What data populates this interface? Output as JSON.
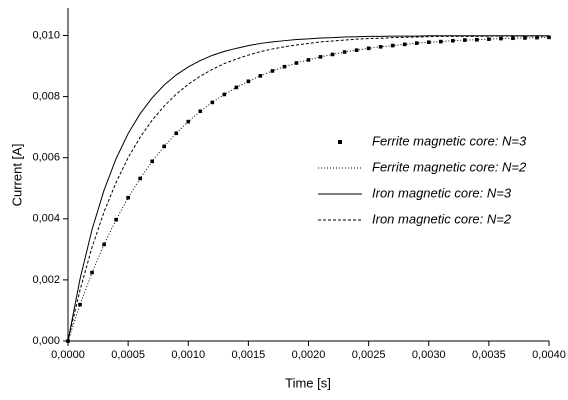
{
  "chart_data": {
    "type": "line",
    "xlabel": "Time [s]",
    "ylabel": "Current [A]",
    "x": [
      0,
      0.0001,
      0.0002,
      0.0003,
      0.0004,
      0.0005,
      0.0006,
      0.0007,
      0.0008,
      0.0009,
      0.001,
      0.0011,
      0.0012,
      0.0013,
      0.0014,
      0.0015,
      0.0016,
      0.0017,
      0.0018,
      0.0019,
      0.002,
      0.0021,
      0.0022,
      0.0023,
      0.0024,
      0.0025,
      0.0026,
      0.0027,
      0.0028,
      0.0029,
      0.003,
      0.0031,
      0.0032,
      0.0033,
      0.0034,
      0.0035,
      0.0036,
      0.0037,
      0.0038,
      0.0039,
      0.004
    ],
    "series": [
      {
        "name": "Ferrite magnetic core: N=3",
        "color": "#000000",
        "style": "markers",
        "values": [
          0,
          0.00119,
          0.00224,
          0.00316,
          0.00397,
          0.00469,
          0.00532,
          0.00588,
          0.00637,
          0.0068,
          0.00718,
          0.00752,
          0.00781,
          0.00807,
          0.0083,
          0.0085,
          0.00868,
          0.00884,
          0.00898,
          0.0091,
          0.0092,
          0.0093,
          0.00938,
          0.00946,
          0.00952,
          0.00958,
          0.00963,
          0.00967,
          0.00971,
          0.00975,
          0.00978,
          0.0098,
          0.00983,
          0.00985,
          0.00986,
          0.00988,
          0.0099,
          0.00991,
          0.00992,
          0.00993,
          0.00994
        ]
      },
      {
        "name": "Ferrite magnetic core: N=2",
        "color": "#000000",
        "style": "dotted",
        "values": [
          0,
          0.00119,
          0.00224,
          0.00316,
          0.00397,
          0.00469,
          0.00532,
          0.00588,
          0.00637,
          0.0068,
          0.00718,
          0.00752,
          0.00781,
          0.00807,
          0.0083,
          0.0085,
          0.00868,
          0.00884,
          0.00898,
          0.0091,
          0.0092,
          0.0093,
          0.00938,
          0.00946,
          0.00952,
          0.00958,
          0.00963,
          0.00967,
          0.00971,
          0.00975,
          0.00978,
          0.0098,
          0.00983,
          0.00985,
          0.00986,
          0.00988,
          0.0099,
          0.00991,
          0.00992,
          0.00993,
          0.00994
        ]
      },
      {
        "name": "Iron magnetic core: N=3",
        "color": "#000000",
        "style": "solid",
        "values": [
          0,
          0.00203,
          0.00365,
          0.00494,
          0.00597,
          0.00679,
          0.00744,
          0.00796,
          0.00838,
          0.00871,
          0.00897,
          0.00918,
          0.00935,
          0.00948,
          0.00958,
          0.00967,
          0.00974,
          0.00979,
          0.00983,
          0.00987,
          0.00989,
          0.00992,
          0.00993,
          0.00995,
          0.00996,
          0.00997,
          0.00997,
          0.00998,
          0.00998,
          0.00998,
          0.00999,
          0.00999,
          0.00999,
          0.00999,
          0.00999,
          0.00999,
          0.00999,
          0.00999,
          0.00999,
          0.00999,
          0.00999
        ]
      },
      {
        "name": "Iron magnetic core: N=2",
        "color": "#000000",
        "style": "dashed",
        "values": [
          0,
          0.00167,
          0.00307,
          0.00423,
          0.00519,
          0.006,
          0.00667,
          0.00723,
          0.00769,
          0.00808,
          0.0084,
          0.00867,
          0.00889,
          0.00908,
          0.00923,
          0.00936,
          0.00947,
          0.00956,
          0.00963,
          0.00969,
          0.00974,
          0.00979,
          0.00982,
          0.00985,
          0.00988,
          0.0099,
          0.00991,
          0.00993,
          0.00994,
          0.00995,
          0.00996,
          0.00997,
          0.00997,
          0.00997,
          0.00997,
          0.00998,
          0.00998,
          0.00998,
          0.00998,
          0.00998,
          0.00998
        ]
      }
    ],
    "xlim": [
      0,
      0.004
    ],
    "xticks": [
      {
        "value": 0,
        "label": "0,0000"
      },
      {
        "value": 0.0005,
        "label": "0,0005"
      },
      {
        "value": 0.001,
        "label": "0,0010"
      },
      {
        "value": 0.0015,
        "label": "0,0015"
      },
      {
        "value": 0.002,
        "label": "0,0020"
      },
      {
        "value": 0.0025,
        "label": "0,0025"
      },
      {
        "value": 0.003,
        "label": "0,0030"
      },
      {
        "value": 0.0035,
        "label": "0,0035"
      },
      {
        "value": 0.004,
        "label": "0,0040"
      }
    ],
    "ylim": [
      0,
      0.0109
    ],
    "yticks": [
      {
        "value": 0,
        "label": "0,000"
      },
      {
        "value": 0.002,
        "label": "0,002"
      },
      {
        "value": 0.004,
        "label": "0,004"
      },
      {
        "value": 0.006,
        "label": "0,006"
      },
      {
        "value": 0.008,
        "label": "0,008"
      },
      {
        "value": 0.01,
        "label": "0,010"
      }
    ],
    "grid": false,
    "legend": "right"
  }
}
